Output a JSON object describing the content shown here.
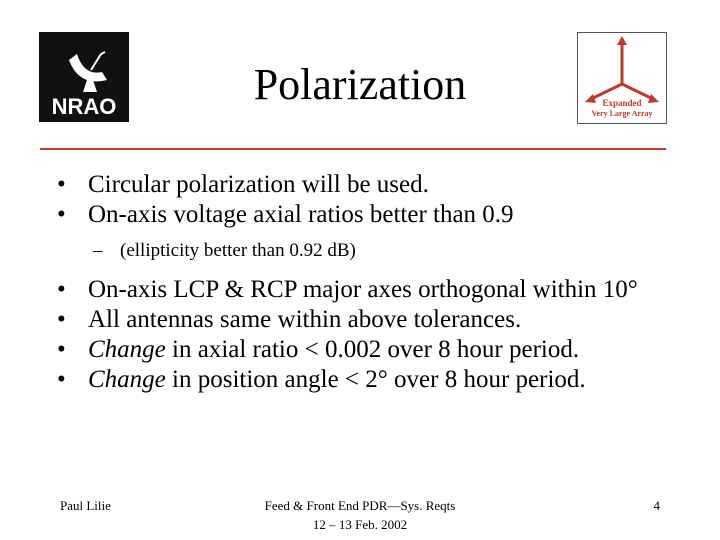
{
  "slide": {
    "title": "Polarization",
    "bullets": [
      {
        "text": "Circular polarization will be used."
      },
      {
        "text": "On-axis voltage axial ratios better than 0.9"
      },
      {
        "text": "On-axis LCP & RCP major axes orthogonal within 10°"
      },
      {
        "text": "All antennas same within above tolerances."
      },
      {
        "emph": "Change",
        "text": " in axial ratio < 0.002 over 8 hour period."
      },
      {
        "emph": "Change",
        "text": " in position angle < 2° over 8 hour period."
      }
    ],
    "sub_bullet": "(ellipticity better than 0.92 dB)",
    "bullet_glyph": "•",
    "sub_glyph": "–"
  },
  "logos": {
    "nrao": {
      "icon": "nrao-logo",
      "text": "NRAO"
    },
    "evla": {
      "icon": "evla-logo",
      "line1": "Expanded",
      "line2": "Very Large Array"
    }
  },
  "footer": {
    "author": "Paul Lilie",
    "event_line1": "Feed & Front End PDR—Sys. Reqts",
    "event_line2": "12 – 13 Feb. 2002",
    "page_number": "4"
  },
  "colors": {
    "rule": "#c0392b",
    "evla_accent": "#c0392b",
    "nrao_bg": "#111111"
  }
}
